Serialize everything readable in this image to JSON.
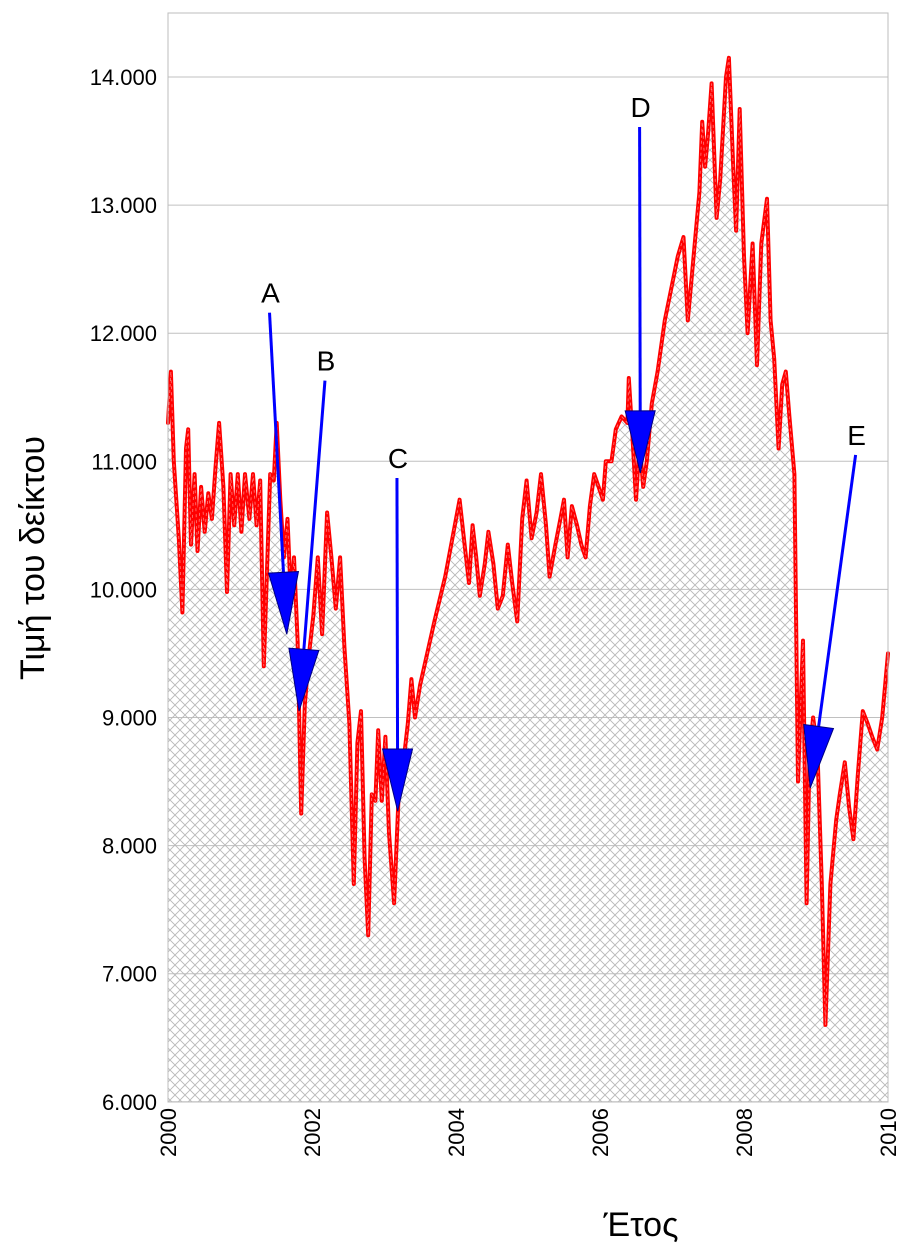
{
  "chart_data": {
    "type": "area",
    "title": "",
    "xlabel": "Έτος",
    "ylabel": "Τιμή του δείκτου",
    "xlim": [
      2000,
      2010
    ],
    "ylim": [
      6000,
      14500
    ],
    "grid": "horizontal",
    "legend": "none",
    "colors": {
      "line": "#ff0000",
      "fill_hatch": "#b8b8b8",
      "arrow": "#0000ff",
      "grid": "#c0c0c0"
    },
    "y_ticks": [
      {
        "value": 6000,
        "label": "6.000"
      },
      {
        "value": 7000,
        "label": "7.000"
      },
      {
        "value": 8000,
        "label": "8.000"
      },
      {
        "value": 9000,
        "label": "9.000"
      },
      {
        "value": 10000,
        "label": "10.000"
      },
      {
        "value": 11000,
        "label": "11.000"
      },
      {
        "value": 12000,
        "label": "12.000"
      },
      {
        "value": 13000,
        "label": "13.000"
      },
      {
        "value": 14000,
        "label": "14.000"
      }
    ],
    "x_ticks": [
      {
        "value": 2000,
        "label": "2000"
      },
      {
        "value": 2002,
        "label": "2002"
      },
      {
        "value": 2004,
        "label": "2004"
      },
      {
        "value": 2006,
        "label": "2006"
      },
      {
        "value": 2008,
        "label": "2008"
      },
      {
        "value": 2010,
        "label": "2010"
      }
    ],
    "series": [
      {
        "points": [
          [
            2000.0,
            11300
          ],
          [
            2000.04,
            11700
          ],
          [
            2000.08,
            11000
          ],
          [
            2000.15,
            10400
          ],
          [
            2000.2,
            9820
          ],
          [
            2000.25,
            11100
          ],
          [
            2000.28,
            11250
          ],
          [
            2000.32,
            10350
          ],
          [
            2000.37,
            10900
          ],
          [
            2000.41,
            10300
          ],
          [
            2000.46,
            10800
          ],
          [
            2000.51,
            10450
          ],
          [
            2000.56,
            10750
          ],
          [
            2000.61,
            10550
          ],
          [
            2000.66,
            10950
          ],
          [
            2000.71,
            11300
          ],
          [
            2000.77,
            10800
          ],
          [
            2000.82,
            9980
          ],
          [
            2000.87,
            10900
          ],
          [
            2000.92,
            10500
          ],
          [
            2000.97,
            10900
          ],
          [
            2001.02,
            10450
          ],
          [
            2001.07,
            10900
          ],
          [
            2001.13,
            10550
          ],
          [
            2001.18,
            10900
          ],
          [
            2001.23,
            10500
          ],
          [
            2001.28,
            10850
          ],
          [
            2001.33,
            9400
          ],
          [
            2001.42,
            10900
          ],
          [
            2001.47,
            10850
          ],
          [
            2001.51,
            11300
          ],
          [
            2001.56,
            10700
          ],
          [
            2001.61,
            10250
          ],
          [
            2001.66,
            10550
          ],
          [
            2001.71,
            9900
          ],
          [
            2001.75,
            10250
          ],
          [
            2001.8,
            9600
          ],
          [
            2001.85,
            8250
          ],
          [
            2001.9,
            9100
          ],
          [
            2001.96,
            9500
          ],
          [
            2002.02,
            9800
          ],
          [
            2002.08,
            10250
          ],
          [
            2002.14,
            9650
          ],
          [
            2002.21,
            10600
          ],
          [
            2002.27,
            10250
          ],
          [
            2002.33,
            9850
          ],
          [
            2002.39,
            10250
          ],
          [
            2002.45,
            9550
          ],
          [
            2002.52,
            8950
          ],
          [
            2002.58,
            7700
          ],
          [
            2002.63,
            8800
          ],
          [
            2002.68,
            9050
          ],
          [
            2002.73,
            7900
          ],
          [
            2002.78,
            7300
          ],
          [
            2002.83,
            8400
          ],
          [
            2002.88,
            8350
          ],
          [
            2002.92,
            8900
          ],
          [
            2002.97,
            8350
          ],
          [
            2003.02,
            8850
          ],
          [
            2003.07,
            8100
          ],
          [
            2003.14,
            7550
          ],
          [
            2003.2,
            8350
          ],
          [
            2003.27,
            8650
          ],
          [
            2003.33,
            8950
          ],
          [
            2003.38,
            9300
          ],
          [
            2003.43,
            9000
          ],
          [
            2003.5,
            9250
          ],
          [
            2003.6,
            9500
          ],
          [
            2003.7,
            9750
          ],
          [
            2003.85,
            10100
          ],
          [
            2003.95,
            10400
          ],
          [
            2004.05,
            10700
          ],
          [
            2004.12,
            10350
          ],
          [
            2004.18,
            10050
          ],
          [
            2004.23,
            10500
          ],
          [
            2004.28,
            10250
          ],
          [
            2004.33,
            9950
          ],
          [
            2004.4,
            10200
          ],
          [
            2004.45,
            10450
          ],
          [
            2004.52,
            10200
          ],
          [
            2004.58,
            9850
          ],
          [
            2004.65,
            9950
          ],
          [
            2004.72,
            10350
          ],
          [
            2004.78,
            10050
          ],
          [
            2004.85,
            9750
          ],
          [
            2004.92,
            10550
          ],
          [
            2004.98,
            10850
          ],
          [
            2005.05,
            10400
          ],
          [
            2005.12,
            10600
          ],
          [
            2005.18,
            10900
          ],
          [
            2005.25,
            10500
          ],
          [
            2005.3,
            10100
          ],
          [
            2005.38,
            10350
          ],
          [
            2005.45,
            10550
          ],
          [
            2005.5,
            10700
          ],
          [
            2005.55,
            10250
          ],
          [
            2005.61,
            10650
          ],
          [
            2005.68,
            10500
          ],
          [
            2005.74,
            10350
          ],
          [
            2005.8,
            10250
          ],
          [
            2005.86,
            10650
          ],
          [
            2005.92,
            10900
          ],
          [
            2005.98,
            10800
          ],
          [
            2006.04,
            10700
          ],
          [
            2006.08,
            11000
          ],
          [
            2006.16,
            11000
          ],
          [
            2006.22,
            11250
          ],
          [
            2006.3,
            11350
          ],
          [
            2006.38,
            11300
          ],
          [
            2006.4,
            11650
          ],
          [
            2006.45,
            11200
          ],
          [
            2006.5,
            10700
          ],
          [
            2006.55,
            11150
          ],
          [
            2006.6,
            10800
          ],
          [
            2006.65,
            11000
          ],
          [
            2006.72,
            11450
          ],
          [
            2006.8,
            11700
          ],
          [
            2006.9,
            12100
          ],
          [
            2006.99,
            12350
          ],
          [
            2007.08,
            12600
          ],
          [
            2007.16,
            12750
          ],
          [
            2007.22,
            12100
          ],
          [
            2007.3,
            12600
          ],
          [
            2007.38,
            13100
          ],
          [
            2007.42,
            13650
          ],
          [
            2007.46,
            13300
          ],
          [
            2007.5,
            13550
          ],
          [
            2007.55,
            13950
          ],
          [
            2007.62,
            12900
          ],
          [
            2007.67,
            13200
          ],
          [
            2007.75,
            14000
          ],
          [
            2007.79,
            14150
          ],
          [
            2007.85,
            13300
          ],
          [
            2007.89,
            12800
          ],
          [
            2007.94,
            13750
          ],
          [
            2008.0,
            12600
          ],
          [
            2008.05,
            12000
          ],
          [
            2008.12,
            12700
          ],
          [
            2008.18,
            11750
          ],
          [
            2008.24,
            12700
          ],
          [
            2008.32,
            13050
          ],
          [
            2008.37,
            12100
          ],
          [
            2008.42,
            11800
          ],
          [
            2008.48,
            11100
          ],
          [
            2008.53,
            11600
          ],
          [
            2008.58,
            11700
          ],
          [
            2008.63,
            11350
          ],
          [
            2008.7,
            10900
          ],
          [
            2008.75,
            8500
          ],
          [
            2008.82,
            9600
          ],
          [
            2008.87,
            7550
          ],
          [
            2008.91,
            8700
          ],
          [
            2008.96,
            9000
          ],
          [
            2009.02,
            8750
          ],
          [
            2009.08,
            7700
          ],
          [
            2009.13,
            6600
          ],
          [
            2009.2,
            7700
          ],
          [
            2009.28,
            8200
          ],
          [
            2009.33,
            8400
          ],
          [
            2009.4,
            8650
          ],
          [
            2009.46,
            8300
          ],
          [
            2009.52,
            8050
          ],
          [
            2009.58,
            8550
          ],
          [
            2009.65,
            9050
          ],
          [
            2009.72,
            8950
          ],
          [
            2009.78,
            8850
          ],
          [
            2009.85,
            8750
          ],
          [
            2009.92,
            9000
          ],
          [
            2010.0,
            9500
          ]
        ]
      }
    ],
    "annotations": [
      {
        "label": "A",
        "tail": [
          2001.41,
          12160
        ],
        "head": [
          2001.65,
          9650
        ]
      },
      {
        "label": "B",
        "tail": [
          2002.18,
          11630
        ],
        "head": [
          2001.82,
          9050
        ]
      },
      {
        "label": "C",
        "tail": [
          2003.18,
          10870
        ],
        "head": [
          2003.19,
          8270
        ]
      },
      {
        "label": "D",
        "tail": [
          2006.55,
          13610
        ],
        "head": [
          2006.56,
          10910
        ]
      },
      {
        "label": "E",
        "tail": [
          2009.55,
          11050
        ],
        "head": [
          2008.92,
          8450
        ]
      }
    ]
  }
}
